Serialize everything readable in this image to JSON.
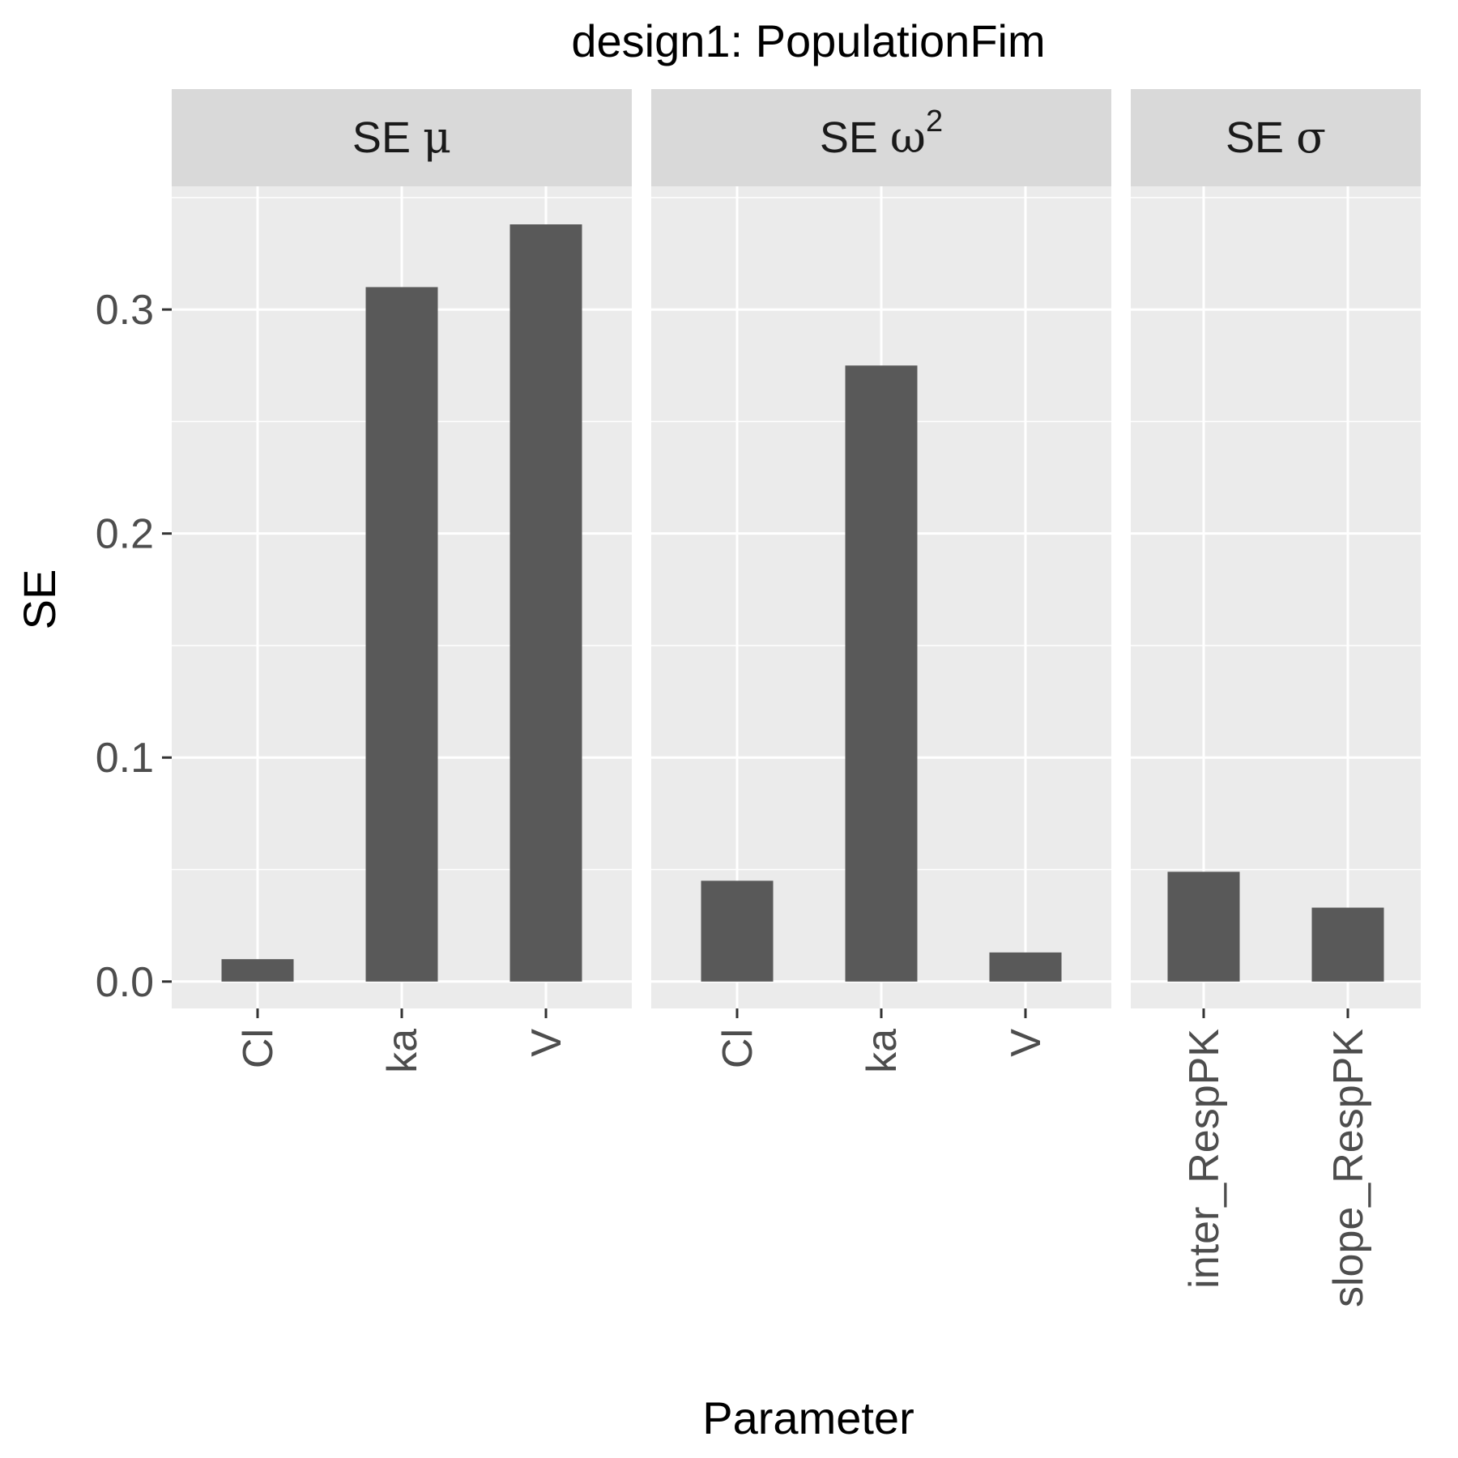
{
  "chart_data": {
    "type": "bar",
    "title": "design1: PopulationFim",
    "xlabel": "Parameter",
    "ylabel": "SE",
    "ylim": [
      -0.012,
      0.355
    ],
    "yticks": [
      "0.0",
      "0.1",
      "0.2",
      "0.3"
    ],
    "ytick_values": [
      0.0,
      0.1,
      0.2,
      0.3
    ],
    "grid": true,
    "bar_color": "#595959",
    "panel_background": "#ebebeb",
    "strip_background": "#d9d9d9",
    "facets": [
      {
        "strip": {
          "prefix": "SE ",
          "symbol": "μ",
          "superscript": ""
        },
        "categories": [
          "Cl",
          "ka",
          "V"
        ],
        "values": [
          0.01,
          0.31,
          0.338
        ]
      },
      {
        "strip": {
          "prefix": "SE ",
          "symbol": "ω",
          "superscript": "2"
        },
        "categories": [
          "Cl",
          "ka",
          "V"
        ],
        "values": [
          0.045,
          0.275,
          0.013
        ]
      },
      {
        "strip": {
          "prefix": "SE ",
          "symbol": "σ",
          "superscript": ""
        },
        "categories": [
          "inter_RespPK",
          "slope_RespPK"
        ],
        "values": [
          0.049,
          0.033
        ]
      }
    ]
  }
}
